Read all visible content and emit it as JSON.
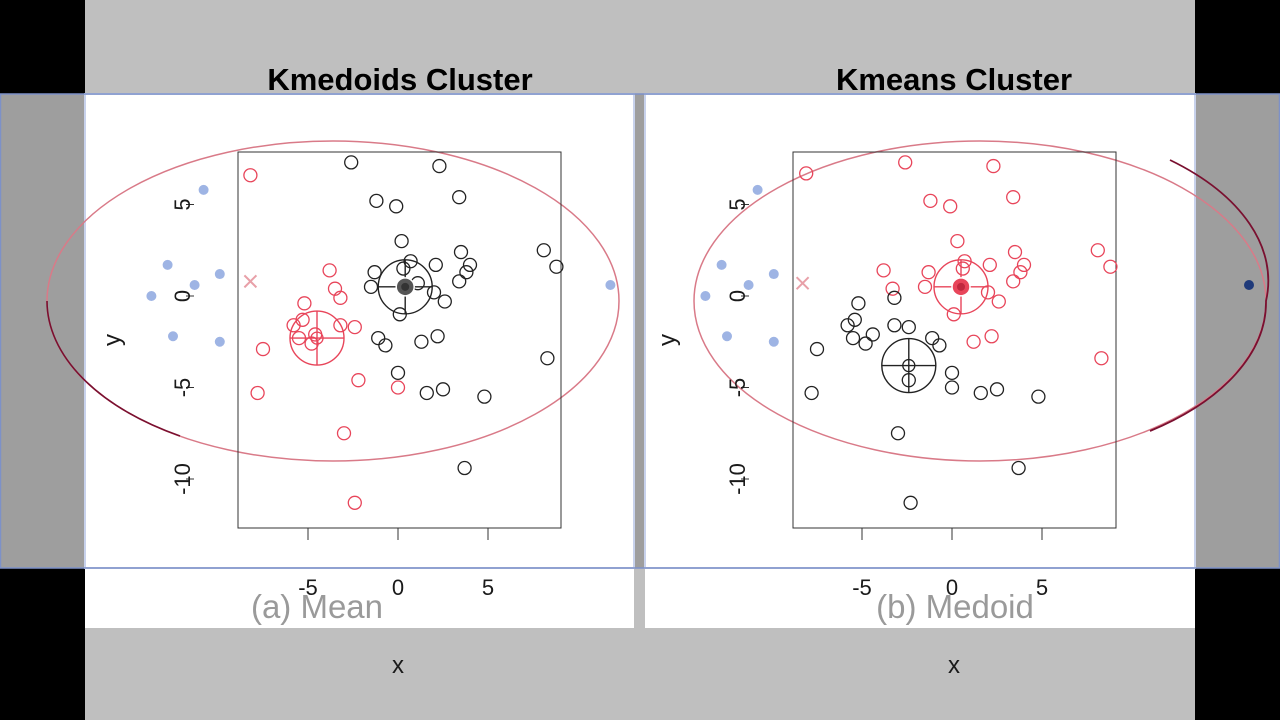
{
  "colors": {
    "red": "#e8455a",
    "black": "#222222",
    "blue": "#9eb4e4",
    "ellipse_left": "#d97a88",
    "ellipse_right_dark": "#7a1030",
    "frame_blue": "#7d91c8"
  },
  "chart_data": [
    {
      "type": "scatter",
      "title": "Kmedoids Cluster",
      "caption": "(a) Mean",
      "xlabel": "x",
      "ylabel": "y",
      "xlim": [
        -9,
        9.2
      ],
      "ylim": [
        -12.2,
        8.3
      ],
      "xticks": [
        "-5",
        "0",
        "5"
      ],
      "yticks": [
        "-10",
        "-5",
        "0",
        "5"
      ],
      "series": [
        {
          "color": "red",
          "points": [
            [
              -8.2,
              6.6
            ],
            [
              -7.5,
              -2.9
            ],
            [
              -7.8,
              -5.3
            ],
            [
              -5.8,
              -1.6
            ],
            [
              -5.5,
              -2.3
            ],
            [
              -5.2,
              -0.4
            ],
            [
              -5.3,
              -1.3
            ],
            [
              -4.8,
              -2.6
            ],
            [
              -4.6,
              -2.1
            ],
            [
              -3.8,
              1.4
            ],
            [
              -3.5,
              0.4
            ],
            [
              -3.2,
              -0.1
            ],
            [
              -3.2,
              -1.6
            ],
            [
              -2.4,
              -1.7
            ],
            [
              -3.0,
              -7.5
            ],
            [
              -2.2,
              -4.6
            ],
            [
              -2.4,
              -11.3
            ],
            [
              0.0,
              -5.0
            ]
          ]
        },
        {
          "color": "black",
          "points": [
            [
              -2.6,
              7.3
            ],
            [
              -1.2,
              5.2
            ],
            [
              -0.1,
              4.9
            ],
            [
              2.3,
              7.1
            ],
            [
              3.4,
              5.4
            ],
            [
              0.2,
              3.0
            ],
            [
              3.5,
              2.4
            ],
            [
              4.0,
              1.7
            ],
            [
              3.8,
              1.3
            ],
            [
              3.4,
              0.8
            ],
            [
              0.3,
              1.5
            ],
            [
              0.7,
              1.9
            ],
            [
              -1.3,
              1.3
            ],
            [
              -1.5,
              0.5
            ],
            [
              -1.1,
              -2.3
            ],
            [
              -0.7,
              -2.7
            ],
            [
              1.1,
              0.7
            ],
            [
              2.0,
              0.2
            ],
            [
              2.6,
              -0.3
            ],
            [
              0.1,
              -1.0
            ],
            [
              1.3,
              -2.5
            ],
            [
              2.2,
              -2.2
            ],
            [
              2.1,
              1.7
            ],
            [
              8.1,
              2.5
            ],
            [
              8.8,
              1.6
            ],
            [
              8.3,
              -3.4
            ],
            [
              0.0,
              -4.2
            ],
            [
              1.6,
              -5.3
            ],
            [
              2.5,
              -5.1
            ],
            [
              4.8,
              -5.5
            ],
            [
              3.7,
              -9.4
            ]
          ]
        },
        {
          "color": "blue",
          "points": [
            [
              -13.7,
              0.0
            ],
            [
              -12.8,
              1.7
            ],
            [
              -12.5,
              -2.2
            ],
            [
              -11.3,
              0.6
            ],
            [
              -10.8,
              5.8
            ],
            [
              -9.9,
              1.2
            ],
            [
              -9.9,
              -2.5
            ],
            [
              11.8,
              0.6
            ]
          ]
        }
      ],
      "centers": [
        {
          "color": "red",
          "x": -4.5,
          "y": -2.3,
          "style": "crosshair-circle"
        },
        {
          "color": "black",
          "x": 0.4,
          "y": 0.5,
          "style": "crosshair-circle-filled"
        }
      ],
      "marker": {
        "symbol": "x",
        "x": -8.2,
        "y": 0.8
      }
    },
    {
      "type": "scatter",
      "title": "Kmeans Cluster",
      "caption": "(b) Medoid",
      "xlabel": "x",
      "ylabel": "y",
      "xlim": [
        -9,
        9.2
      ],
      "ylim": [
        -12.2,
        8.3
      ],
      "xticks": [
        "-5",
        "0",
        "5"
      ],
      "yticks": [
        "-10",
        "-5",
        "0",
        "5"
      ],
      "series": [
        {
          "color": "red",
          "points": [
            [
              -8.1,
              6.7
            ],
            [
              -2.6,
              7.3
            ],
            [
              2.3,
              7.1
            ],
            [
              -1.2,
              5.2
            ],
            [
              -0.1,
              4.9
            ],
            [
              3.4,
              5.4
            ],
            [
              0.3,
              3.0
            ],
            [
              3.5,
              2.4
            ],
            [
              4.0,
              1.7
            ],
            [
              3.8,
              1.3
            ],
            [
              3.4,
              0.8
            ],
            [
              0.6,
              1.5
            ],
            [
              0.7,
              1.9
            ],
            [
              -1.3,
              1.3
            ],
            [
              -1.5,
              0.5
            ],
            [
              -3.8,
              1.4
            ],
            [
              -3.3,
              0.4
            ],
            [
              2.0,
              0.2
            ],
            [
              2.6,
              -0.3
            ],
            [
              2.1,
              1.7
            ],
            [
              0.1,
              -1.0
            ],
            [
              1.2,
              -2.5
            ],
            [
              2.2,
              -2.2
            ],
            [
              8.1,
              2.5
            ],
            [
              8.8,
              1.6
            ],
            [
              8.3,
              -3.4
            ]
          ]
        },
        {
          "color": "black",
          "points": [
            [
              -5.2,
              -0.4
            ],
            [
              -5.4,
              -1.3
            ],
            [
              -5.8,
              -1.6
            ],
            [
              -5.5,
              -2.3
            ],
            [
              -4.8,
              -2.6
            ],
            [
              -4.4,
              -2.1
            ],
            [
              -3.2,
              -1.6
            ],
            [
              -2.4,
              -1.7
            ],
            [
              -1.1,
              -2.3
            ],
            [
              -0.7,
              -2.7
            ],
            [
              -7.5,
              -2.9
            ],
            [
              -7.8,
              -5.3
            ],
            [
              -2.4,
              -4.6
            ],
            [
              0.0,
              -5.0
            ],
            [
              0.0,
              -4.2
            ],
            [
              1.6,
              -5.3
            ],
            [
              2.5,
              -5.1
            ],
            [
              4.8,
              -5.5
            ],
            [
              -3.0,
              -7.5
            ],
            [
              3.7,
              -9.4
            ],
            [
              -2.3,
              -11.3
            ],
            [
              -3.2,
              -0.1
            ]
          ]
        },
        {
          "color": "blue",
          "points": [
            [
              -13.7,
              0.0
            ],
            [
              -12.8,
              1.7
            ],
            [
              -12.5,
              -2.2
            ],
            [
              -11.3,
              0.6
            ],
            [
              -10.8,
              5.8
            ],
            [
              -9.9,
              1.2
            ],
            [
              -9.9,
              -2.5
            ]
          ]
        }
      ],
      "centers": [
        {
          "color": "red",
          "x": 0.5,
          "y": 0.5,
          "style": "crosshair-circle-filled"
        },
        {
          "color": "black",
          "x": -2.4,
          "y": -3.8,
          "style": "crosshair-circle"
        }
      ],
      "dark_point": {
        "x": 16.5,
        "y": 0.6
      },
      "marker": {
        "symbol": "x",
        "x": -8.3,
        "y": 0.7
      }
    }
  ]
}
